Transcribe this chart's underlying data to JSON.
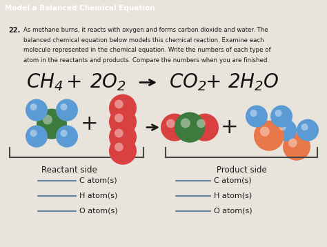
{
  "header_text": "Model a Balanced Chemical Equation",
  "header_bg": "#3a6b9e",
  "header_text_color": "#ffffff",
  "question_num": "22.",
  "question_text_line1": "As methane burns, it reacts with oxygen and forms carbon dioxide and water. The",
  "question_text_line2": "balanced chemical equation below models this chemical reaction. Examine each",
  "question_text_line3": "molecule represented in the chemical equation. Write the numbers of each type of",
  "question_text_line4": "atom in the reactants and products. Compare the numbers when you are finished.",
  "page_bg": "#e8e4dc",
  "content_bg": "#d8d4cc",
  "reactant_label": "Reactant side",
  "product_label": "Product side",
  "atom_labels_left": [
    "C atom(s)",
    "H atom(s)",
    "O atom(s)"
  ],
  "atom_labels_right": [
    "C atom(s)",
    "H atom(s)",
    "O atom(s)"
  ],
  "blue_sphere": "#5b9bd5",
  "green_sphere": "#3d7a3d",
  "red_sphere": "#d94040",
  "orange_sphere": "#e8784a",
  "line_color": "#4a7a9b",
  "text_color": "#1a1a1a",
  "bracket_color": "#444444",
  "eq_text_color": "#111111"
}
